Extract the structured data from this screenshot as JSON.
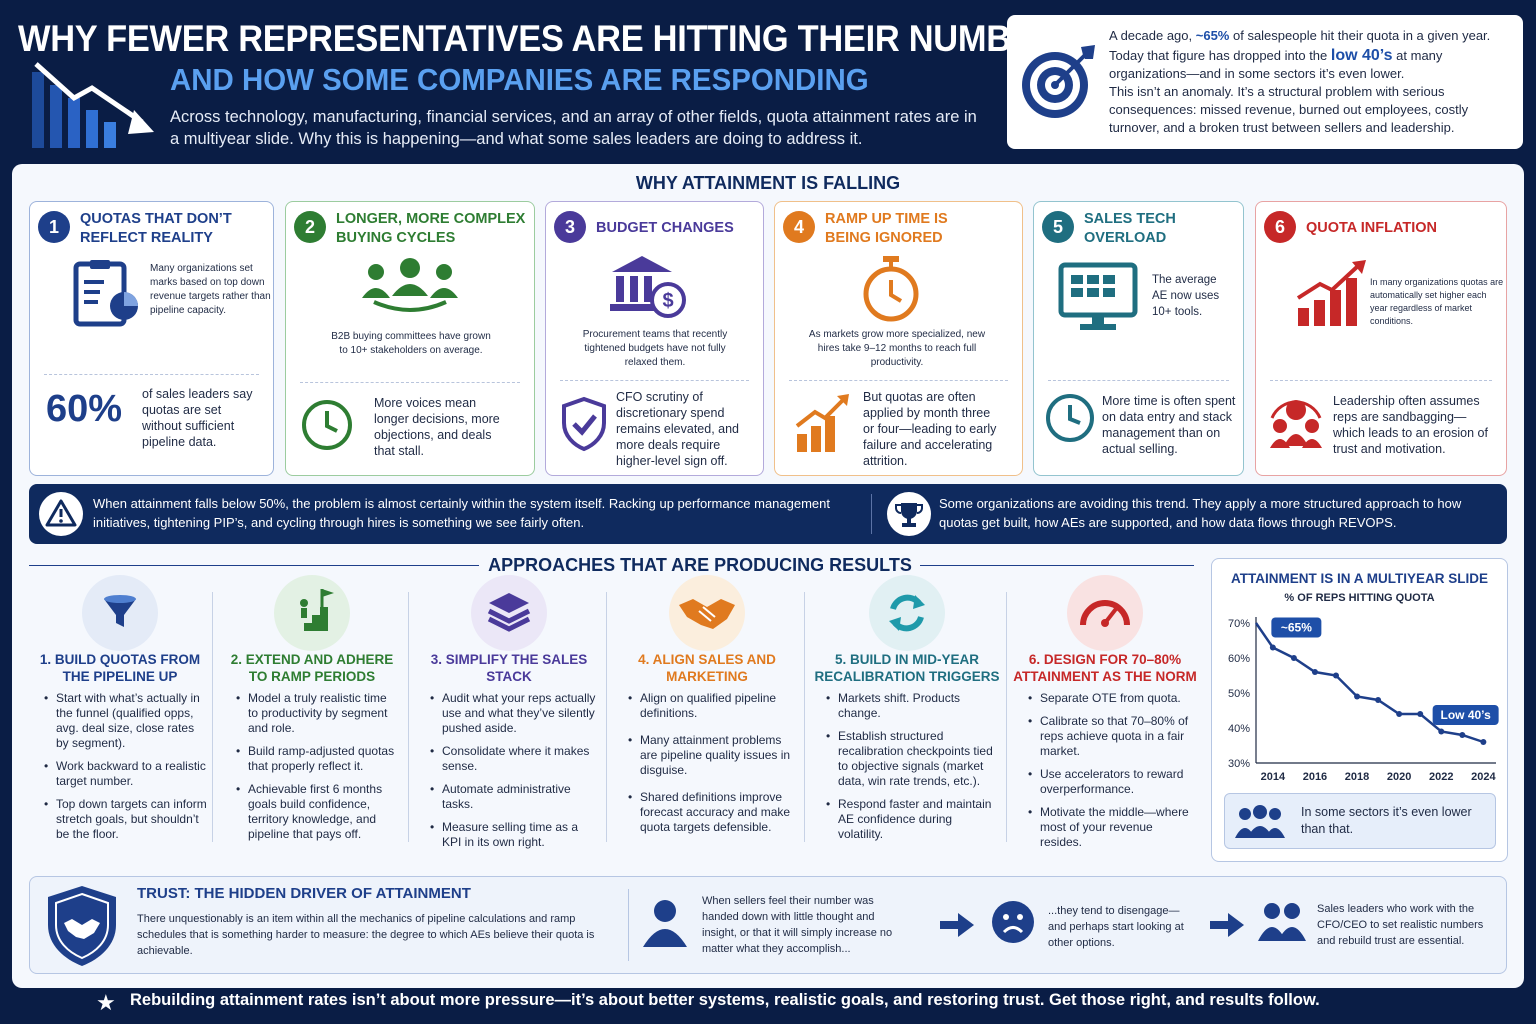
{
  "header": {
    "title": "WHY FEWER REPRESENTATIVES ARE HITTING THEIR NUMBERS",
    "subtitle": "AND HOW SOME COMPANIES ARE RESPONDING",
    "description": "Across technology, manufacturing, financial services, and an array of other fields, quota attainment rates are in a multiyear slide. Why this is happening—and what some sales leaders are doing to address it."
  },
  "intro": {
    "p1a": "A decade ago, ",
    "p1b": "~65%",
    "p1c": " of salespeople hit their quota in a given year.",
    "p2a": "Today that figure has dropped into the ",
    "p2b": "low 40’s",
    "p2c": " at many organizations—and in some sectors it’s even lower.",
    "p3": "This isn’t an anomaly. It’s a structural problem with serious consequences: missed revenue, burned out employees, costly turnover, and a broken trust between sellers and leadership."
  },
  "why": {
    "title": "WHY ATTAINMENT IS FALLING",
    "cards": [
      {
        "num": "1",
        "title": "QUOTAS THAT DON’T REFLECT REALITY",
        "text": "Many organizations set marks based on top down revenue targets rather than pipeline capacity.",
        "stat": "60%",
        "lower": "of sales leaders say quotas are set without sufficient pipeline data.",
        "icon": "clipboard-chart-icon",
        "color": "#1e3f8a"
      },
      {
        "num": "2",
        "title": "LONGER, MORE COMPLEX BUYING CYCLES",
        "text": "B2B buying committees have grown to 10+ stakeholders on average.",
        "lower": "More voices mean longer decisions, more objections, and deals that stall.",
        "icon": "committee-icon",
        "color": "#2e7d32"
      },
      {
        "num": "3",
        "title": "BUDGET CHANGES",
        "text": "Procurement teams that recently tightened budgets have not fully relaxed them.",
        "lower": "CFO scrutiny of discretionary spend remains elevated, and more deals require higher-level sign off.",
        "icon": "bank-dollar-icon",
        "color": "#4a3a9a"
      },
      {
        "num": "4",
        "title": "RAMP UP TIME IS BEING IGNORED",
        "text": "As markets grow more specialized, new hires take 9–12 months to reach full productivity.",
        "lower": "But quotas are often applied by month three or four—leading to early failure and accelerating attrition.",
        "icon": "stopwatch-icon",
        "color": "#e07a1f"
      },
      {
        "num": "5",
        "title": "SALES TECH OVERLOAD",
        "text": "The average AE now uses 10+ tools.",
        "lower": "More time is often spent on data entry and stack management than on actual selling.",
        "icon": "monitor-apps-icon",
        "color": "#1f6e80"
      },
      {
        "num": "6",
        "title": "QUOTA INFLATION",
        "text": "In many organizations quotas are automatically set higher each year regardless of market conditions.",
        "lower": "Leadership often assumes reps are sandbagging—which leads to an erosion of trust and motivation.",
        "icon": "rising-bars-icon",
        "color": "#c62828"
      }
    ]
  },
  "banner": {
    "left": "When attainment falls below 50%, the problem is almost certainly within the system itself. Racking up performance management initiatives, tightening PIP’s, and cycling through hires is something we see fairly often.",
    "right": "Some organizations are avoiding this trend. They apply a more structured approach to how quotas get built, how AEs are supported, and how data flows through REVOPS."
  },
  "approaches": {
    "title": "APPROACHES THAT ARE PRODUCING RESULTS",
    "items": [
      {
        "title": "1. BUILD QUOTAS FROM THE PIPELINE UP",
        "bullets": [
          "Start with what’s actually in the funnel (qualified opps, avg. deal size, close rates by segment).",
          "Work backward to a realistic target number.",
          "Top down targets can inform stretch goals, but shouldn’t be the floor."
        ],
        "icon": "funnel-icon",
        "color": "#1e3f8a"
      },
      {
        "title": "2. EXTEND AND ADHERE TO RAMP PERIODS",
        "bullets": [
          "Model a truly realistic time to productivity by segment and role.",
          "Build ramp-adjusted quotas that properly reflect it.",
          "Achievable first 6 months goals build confidence, territory knowledge, and pipeline that pays off."
        ],
        "icon": "stairs-flag-icon",
        "color": "#2e7d32"
      },
      {
        "title": "3. SIMPLIFY THE SALES STACK",
        "bullets": [
          "Audit what your reps actually use and what they’ve silently pushed aside.",
          "Consolidate where it makes sense.",
          "Automate administrative tasks.",
          "Measure selling time as a KPI in its own right."
        ],
        "icon": "layers-icon",
        "color": "#4a3a9a"
      },
      {
        "title": "4. ALIGN SALES AND MARKETING",
        "bullets": [
          "Align on qualified pipeline definitions.",
          "Many attainment problems are pipeline quality issues in disguise.",
          "Shared definitions improve forecast accuracy and make quota targets defensible."
        ],
        "icon": "handshake-icon",
        "color": "#e07a1f"
      },
      {
        "title": "5. BUILD IN MID-YEAR RECALIBRATION TRIGGERS",
        "bullets": [
          "Markets shift. Products change.",
          "Establish structured recalibration checkpoints tied to objective signals (market data, win rate trends, etc.).",
          "Respond faster and maintain AE confidence during volatility."
        ],
        "icon": "refresh-icon",
        "color": "#1f6e80"
      },
      {
        "title": "6. DESIGN FOR 70–80% ATTAINMENT AS THE NORM",
        "bullets": [
          "Separate OTE from quota.",
          "Calibrate so that 70–80% of reps achieve quota in a fair market.",
          "Use accelerators to reward overperformance.",
          "Motivate the middle—where most of your revenue resides."
        ],
        "icon": "gauge-icon",
        "color": "#c62828"
      }
    ]
  },
  "chart_data": {
    "type": "line",
    "title": "ATTAINMENT IS IN A MULTIYEAR SLIDE",
    "subtitle": "% OF REPS HITTING QUOTA",
    "x": [
      2014,
      2015,
      2016,
      2017,
      2018,
      2019,
      2020,
      2021,
      2022,
      2023,
      2024
    ],
    "values": [
      63,
      60,
      56,
      55,
      49,
      48,
      44,
      44,
      39,
      38,
      36
    ],
    "xticks": [
      "2014",
      "2016",
      "2018",
      "2020",
      "2022",
      "2024"
    ],
    "yticks": [
      "70%",
      "60%",
      "50%",
      "40%",
      "30%"
    ],
    "ylim": [
      30,
      70
    ],
    "xlim": [
      2013.2,
      2024.6
    ],
    "annotations": [
      "~65%",
      "Low 40’s"
    ],
    "start_value": 70,
    "start_x": 2013.2,
    "note": "In some sectors it’s even lower than that."
  },
  "trust": {
    "title": "TRUST: THE HIDDEN DRIVER OF ATTAINMENT",
    "text": "There unquestionably is an item within all the mechanics of pipeline calculations and ramp schedules that is something harder to measure: the degree to which AEs believe their quota is achievable.",
    "step1": "When sellers feel their number was handed down with little thought and insight, or that it will simply increase no matter what they accomplish...",
    "step2": "...they tend to disengage—and perhaps start looking at other options.",
    "step3": "Sales leaders who work with the CFO/CEO to set realistic numbers and rebuild trust are essential."
  },
  "footer": "Rebuilding attainment rates isn’t about more pressure—it’s about better systems, realistic goals, and restoring trust. Get those right, and results follow."
}
